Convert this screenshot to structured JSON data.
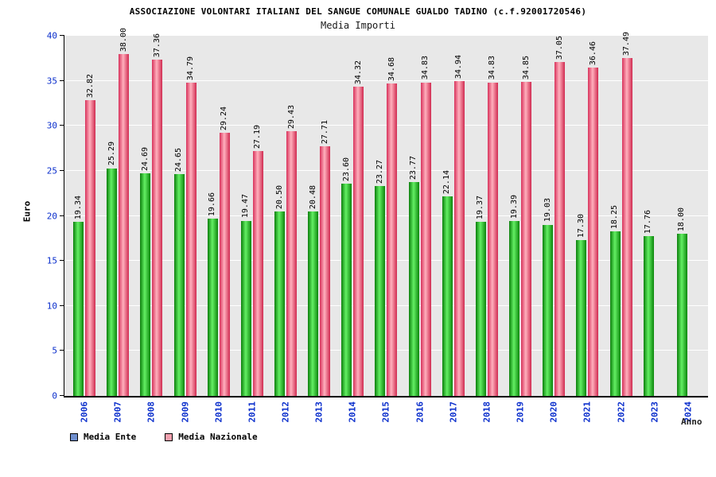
{
  "header": {
    "title": "ASSOCIAZIONE VOLONTARI ITALIANI DEL SANGUE COMUNALE GUALDO TADINO (c.f.92001720546)",
    "subtitle": "Media Importi"
  },
  "axes": {
    "y_label": "Euro",
    "x_label": "Anno"
  },
  "legend": [
    {
      "label": "Media Ente",
      "color": "#6f8fce"
    },
    {
      "label": "Media Nazionale",
      "color": "#f2a0ae"
    }
  ],
  "colors": {
    "plot_background": "#e8e8e8",
    "gridline": "#ffffff",
    "tick_label": "#0a2ecc"
  },
  "chart_data": {
    "type": "bar",
    "title": "Media Importi",
    "xlabel": "Anno",
    "ylabel": "Euro",
    "ylim": [
      0,
      40
    ],
    "yticks": [
      0,
      5,
      10,
      15,
      20,
      25,
      30,
      35,
      40
    ],
    "grid": "horizontal white gridlines on gray band",
    "legend_position": "bottom-left",
    "value_label_format": "2-decimals, rotated vertical above each bar",
    "categories": [
      2006,
      2007,
      2008,
      2009,
      2010,
      2011,
      2012,
      2013,
      2014,
      2015,
      2016,
      2017,
      2018,
      2019,
      2020,
      2021,
      2022,
      2023,
      2024
    ],
    "series": [
      {
        "name": "Media Ente",
        "gradient": [
          "#0b7f0b",
          "#63ef63",
          "#0c860c"
        ],
        "values": [
          19.34,
          25.29,
          24.69,
          24.65,
          19.66,
          19.47,
          20.5,
          20.48,
          23.6,
          23.27,
          23.77,
          22.14,
          19.37,
          19.39,
          19.03,
          17.3,
          18.25,
          17.76,
          18.0
        ]
      },
      {
        "name": "Media Nazionale",
        "gradient": [
          "#d8315b",
          "#ffb0bd",
          "#d02a50"
        ],
        "values": [
          32.82,
          38.0,
          37.36,
          34.79,
          29.24,
          27.19,
          29.43,
          27.71,
          34.32,
          34.68,
          34.83,
          34.94,
          34.83,
          34.85,
          37.05,
          36.46,
          37.49,
          null,
          null
        ]
      }
    ]
  }
}
